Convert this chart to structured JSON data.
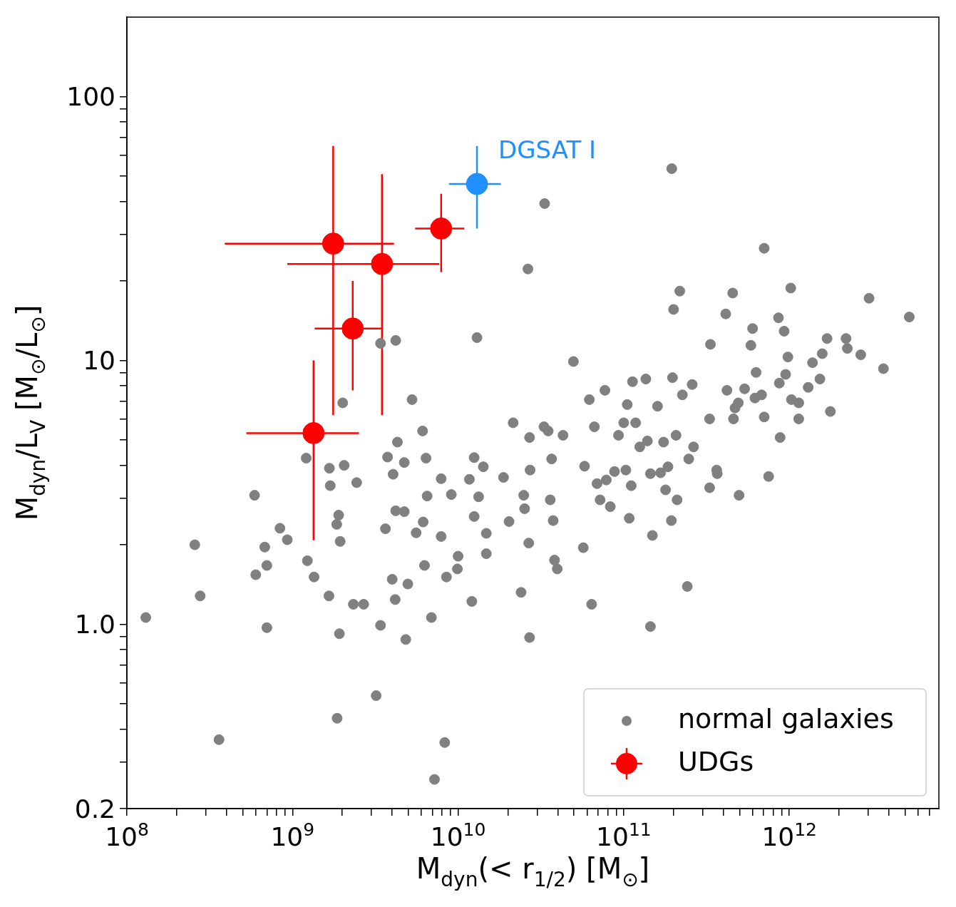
{
  "chart_data": {
    "type": "scatter",
    "xlabel": "M$_{dyn}$(< r$_{1/2}$) [M$_{⊙}$]",
    "ylabel": "M$_{dyn}$/L$_{V}$ [M$_{⊙}$/L$_{⊙}$]",
    "log": "xy",
    "marker": "circle",
    "legend": "bottom right",
    "xlim": [
      100000000.0,
      8000000000000.0
    ],
    "ylim": [
      0.2,
      200
    ],
    "xticks": [
      {
        "value": 100000000.0,
        "label": "10$^{8}$"
      },
      {
        "value": 200000000.0,
        "label": null
      },
      {
        "value": 300000000.0,
        "label": null
      },
      {
        "value": 400000000.0,
        "label": null
      },
      {
        "value": 500000000.0,
        "label": null
      },
      {
        "value": 600000000.0,
        "label": null
      },
      {
        "value": 700000000.0,
        "label": null
      },
      {
        "value": 800000000.0,
        "label": null
      },
      {
        "value": 900000000.0,
        "label": null
      },
      {
        "value": 1000000000.0,
        "label": "10$^{9}$"
      },
      {
        "value": 2000000000.0,
        "label": null
      },
      {
        "value": 3000000000.0,
        "label": null
      },
      {
        "value": 4000000000.0,
        "label": null
      },
      {
        "value": 5000000000.0,
        "label": null
      },
      {
        "value": 6000000000.0,
        "label": null
      },
      {
        "value": 7000000000.0,
        "label": null
      },
      {
        "value": 8000000000.0,
        "label": null
      },
      {
        "value": 9000000000.0,
        "label": null
      },
      {
        "value": 10000000000.0,
        "label": "10$^{10}$"
      },
      {
        "value": 20000000000.0,
        "label": null
      },
      {
        "value": 30000000000.0,
        "label": null
      },
      {
        "value": 40000000000.0,
        "label": null
      },
      {
        "value": 50000000000.0,
        "label": null
      },
      {
        "value": 60000000000.0,
        "label": null
      },
      {
        "value": 70000000000.0,
        "label": null
      },
      {
        "value": 80000000000.0,
        "label": null
      },
      {
        "value": 90000000000.0,
        "label": null
      },
      {
        "value": 100000000000.0,
        "label": "10$^{11}$"
      },
      {
        "value": 200000000000.0,
        "label": null
      },
      {
        "value": 300000000000.0,
        "label": null
      },
      {
        "value": 400000000000.0,
        "label": null
      },
      {
        "value": 500000000000.0,
        "label": null
      },
      {
        "value": 600000000000.0,
        "label": null
      },
      {
        "value": 700000000000.0,
        "label": null
      },
      {
        "value": 800000000000.0,
        "label": null
      },
      {
        "value": 900000000000.0,
        "label": null
      },
      {
        "value": 1000000000000.0,
        "label": "10$^{12}$"
      },
      {
        "value": 2000000000000.0,
        "label": null
      },
      {
        "value": 3000000000000.0,
        "label": null
      },
      {
        "value": 4000000000000.0,
        "label": null
      },
      {
        "value": 5000000000000.0,
        "label": null
      },
      {
        "value": 6000000000000.0,
        "label": null
      },
      {
        "value": 7000000000000.0,
        "label": null
      }
    ],
    "yticks": [
      {
        "value": 0.2,
        "label": "0.2"
      },
      {
        "value": 0.3,
        "label": null
      },
      {
        "value": 0.4,
        "label": null
      },
      {
        "value": 0.5,
        "label": null
      },
      {
        "value": 0.6,
        "label": null
      },
      {
        "value": 0.7,
        "label": null
      },
      {
        "value": 0.8,
        "label": null
      },
      {
        "value": 0.9,
        "label": null
      },
      {
        "value": 1,
        "label": "1.0"
      },
      {
        "value": 2,
        "label": null
      },
      {
        "value": 3,
        "label": null
      },
      {
        "value": 4,
        "label": null
      },
      {
        "value": 5,
        "label": null
      },
      {
        "value": 6,
        "label": null
      },
      {
        "value": 7,
        "label": null
      },
      {
        "value": 8,
        "label": null
      },
      {
        "value": 9,
        "label": null
      },
      {
        "value": 10,
        "label": "10"
      },
      {
        "value": 20,
        "label": null
      },
      {
        "value": 30,
        "label": null
      },
      {
        "value": 40,
        "label": null
      },
      {
        "value": 50,
        "label": null
      },
      {
        "value": 60,
        "label": null
      },
      {
        "value": 70,
        "label": null
      },
      {
        "value": 80,
        "label": null
      },
      {
        "value": 90,
        "label": null
      },
      {
        "value": 100,
        "label": "100"
      }
    ],
    "annotations": [
      {
        "text": "DGSAT I",
        "x": 13000000000.0,
        "y": 46.6
      }
    ],
    "series": [
      {
        "name": "normal galaxies",
        "color": "#808080",
        "x": [
          130000000.0,
          257000000.0,
          277000000.0,
          360000000.0,
          590000000.0,
          600000000.0,
          680000000.0,
          700000000.0,
          700000000.0,
          840000000.0,
          930000000.0,
          1210000000.0,
          1230000000.0,
          1350000000.0,
          1660000000.0,
          1670000000.0,
          1690000000.0,
          1850000000.0,
          1900000000.0,
          1940000000.0,
          1920000000.0,
          1860000000.0,
          2010000000.0,
          2050000000.0,
          2330000000.0,
          2440000000.0,
          2690000000.0,
          3400000000.0,
          3400000000.0,
          3200000000.0,
          3640000000.0,
          3750000000.0,
          4050000000.0,
          4200000000.0,
          4300000000.0,
          4000000000.0,
          4170000000.0,
          4200000000.0,
          4730000000.0,
          4830000000.0,
          4730000000.0,
          4970000000.0,
          5270000000.0,
          5580000000.0,
          6100000000.0,
          6150000000.0,
          6400000000.0,
          6270000000.0,
          6500000000.0,
          6900000000.0,
          7900000000.0,
          7900000000.0,
          8500000000.0,
          8300000000.0,
          7200000000.0,
          9100000000.0,
          10000000000.0,
          9900000000.0,
          11700000000.0,
          12100000000.0,
          12500000000.0,
          12500000000.0,
          13000000000.0,
          13300000000.0,
          14200000000.0,
          14800000000.0,
          14800000000.0,
          18800000000.0,
          20300000000.0,
          21500000000.0,
          25200000000.0,
          24900000000.0,
          24000000000.0,
          26400000000.0,
          27000000000.0,
          27200000000.0,
          26700000000.0,
          27000000000.0,
          33300000000.0,
          33000000000.0,
          35000000000.0,
          36000000000.0,
          37500000000.0,
          38200000000.0,
          39700000000.0,
          36700000000.0,
          43000000000.0,
          49700000000.0,
          57000000000.0,
          58000000000.0,
          62000000000.0,
          64000000000.0,
          66500000000.0,
          69000000000.0,
          72000000000.0,
          77000000000.0,
          83000000000.0,
          88000000000.0,
          93000000000.0,
          103000000000.0,
          105000000000.0,
          108000000000.0,
          111000000000.0,
          113000000000.0,
          118000000000.0,
          125000000000.0,
          136000000000.0,
          145000000000.0,
          149000000000.0,
          145000000000.0,
          160000000000.0,
          167000000000.0,
          185000000000.0,
          195000000000.0,
          194000000000.0,
          200000000000.0,
          197000000000.0,
          207000000000.0,
          210000000000.0,
          218000000000.0,
          226000000000.0,
          242000000000.0,
          247000000000.0,
          259000000000.0,
          264000000000.0,
          330000000000.0,
          330000000000.0,
          334000000000.0,
          367000000000.0,
          413000000000.0,
          455000000000.0,
          460000000000.0,
          492000000000.0,
          497000000000.0,
          537000000000.0,
          586000000000.0,
          600000000000.0,
          630000000000.0,
          680000000000.0,
          705000000000.0,
          705000000000.0,
          750000000000.0,
          860000000000.0,
          870000000000.0,
          880000000000.0,
          930000000000.0,
          980000000000.0,
          1020000000000.0,
          1030000000000.0,
          1140000000000.0,
          1300000000000.0,
          1380000000000.0,
          1530000000000.0,
          1580000000000.0,
          1690000000000.0,
          1770000000000.0,
          2200000000000.0,
          2240000000000.0,
          2700000000000.0,
          3030000000000.0,
          3700000000000.0,
          5300000000000.0,
          950000000000.0,
          1140000000000.0,
          620000000000.0,
          470000000000.0,
          420000000000.0,
          78500000000.0,
          100000000000.0,
          139000000000.0,
          174000000000.0,
          179000000000.0,
          364000000000.0
        ],
        "values": [
          1.06,
          2.0,
          1.28,
          0.365,
          3.08,
          1.54,
          1.96,
          0.97,
          1.67,
          2.31,
          2.09,
          4.26,
          1.74,
          1.51,
          1.28,
          3.9,
          3.35,
          2.39,
          2.59,
          2.06,
          0.92,
          0.44,
          6.9,
          4.0,
          1.19,
          3.44,
          1.19,
          11.6,
          0.99,
          0.536,
          2.3,
          4.3,
          3.7,
          11.9,
          4.9,
          1.48,
          1.24,
          2.69,
          2.67,
          0.875,
          4.1,
          1.42,
          7.1,
          2.22,
          5.4,
          2.44,
          4.26,
          1.67,
          3.06,
          1.06,
          3.56,
          2.15,
          1.51,
          0.356,
          0.258,
          3.1,
          1.81,
          1.62,
          3.54,
          1.22,
          4.28,
          2.56,
          12.2,
          3.04,
          3.95,
          2.21,
          1.85,
          3.6,
          2.45,
          5.8,
          2.74,
          3.08,
          1.32,
          22.2,
          5.1,
          3.84,
          2.03,
          0.89,
          39.3,
          5.6,
          5.4,
          2.96,
          2.47,
          1.75,
          1.62,
          4.23,
          5.2,
          9.9,
          1.95,
          3.97,
          7.1,
          1.19,
          5.6,
          3.41,
          2.96,
          7.7,
          2.79,
          3.79,
          5.2,
          3.84,
          6.8,
          2.52,
          3.35,
          8.3,
          5.8,
          4.7,
          8.5,
          3.72,
          2.17,
          0.98,
          6.7,
          3.75,
          3.95,
          53.3,
          2.47,
          15.6,
          8.6,
          5.2,
          2.96,
          18.3,
          7.4,
          1.39,
          4.23,
          8.1,
          4.7,
          6.0,
          3.29,
          11.5,
          3.72,
          15.0,
          18.0,
          6.0,
          6.9,
          3.08,
          7.8,
          11.4,
          13.2,
          9.0,
          7.4,
          26.6,
          6.1,
          3.63,
          14.5,
          8.2,
          5.1,
          12.9,
          10.3,
          18.8,
          7.1,
          6.0,
          7.9,
          9.8,
          8.5,
          10.6,
          12.1,
          6.4,
          12.1,
          11.1,
          10.5,
          17.2,
          9.3,
          14.6,
          8.85,
          6.9,
          7.2,
          6.6,
          7.7,
          3.52,
          5.8,
          4.95,
          4.9,
          3.23,
          3.84
        ]
      },
      {
        "name": "UDGs",
        "color": "#ff0000",
        "x": [
          1340000000.0,
          1760000000.0,
          3470000000.0,
          2310000000.0,
          7900000000.0
        ],
        "values": [
          5.3,
          27.7,
          23.2,
          13.2,
          31.6
        ],
        "errors": [
          [
            2.08,
            10
          ],
          [
            6.2,
            64.9
          ],
          [
            6.2,
            50.8
          ],
          [
            7.7,
            20
          ],
          [
            21.6,
            42.8
          ]
        ],
        "xerrors": [
          [
            527000000.0,
            2520000000.0
          ],
          [
            390000000.0,
            4100000000.0
          ],
          [
            930000000.0,
            7700000000.0
          ],
          [
            1360000000.0,
            3470000000.0
          ],
          [
            5500000000.0,
            10900000000.0
          ]
        ]
      },
      {
        "color": "#1e90ff",
        "x": [
          13000000000.0
        ],
        "values": [
          46.6
        ],
        "errors": [
          [
            31.6,
            64.9
          ]
        ],
        "xerrors": [
          [
            8800000000.0,
            18100000000.0
          ]
        ]
      }
    ]
  }
}
